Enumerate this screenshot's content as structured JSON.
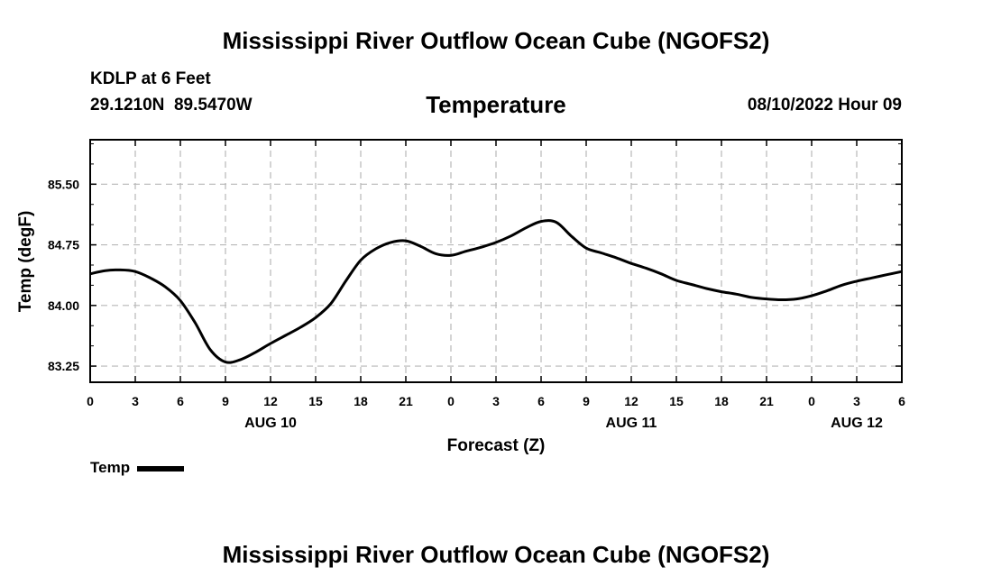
{
  "header": {
    "title": "Mississippi River Outflow Ocean Cube (NGOFS2)",
    "station": "KDLP at 6 Feet",
    "coords": "29.1210N  89.5470W",
    "variable": "Temperature",
    "datetime": "08/10/2022 Hour 09"
  },
  "footer": {
    "title": "Mississippi River Outflow Ocean Cube (NGOFS2)"
  },
  "legend": {
    "label": "Temp"
  },
  "chart_data": {
    "type": "line",
    "title": "Temperature",
    "xlabel": "Forecast (Z)",
    "ylabel": "Temp (degF)",
    "xlim": [
      0,
      54
    ],
    "ylim": [
      83.05,
      86.05
    ],
    "grid": true,
    "legend_position": "bottom-left",
    "x_ticks": [
      0,
      3,
      6,
      9,
      12,
      15,
      18,
      21,
      24,
      27,
      30,
      33,
      36,
      39,
      42,
      45,
      48,
      51,
      54
    ],
    "x_tick_labels": [
      "0",
      "3",
      "6",
      "9",
      "12",
      "15",
      "18",
      "21",
      "0",
      "3",
      "6",
      "9",
      "12",
      "15",
      "18",
      "21",
      "0",
      "3",
      "6"
    ],
    "date_labels": [
      {
        "x": 12,
        "label": "AUG 10"
      },
      {
        "x": 36,
        "label": "AUG 11"
      },
      {
        "x": 51,
        "label": "AUG 12"
      }
    ],
    "y_ticks": [
      83.25,
      84.0,
      84.75,
      85.5
    ],
    "y_tick_labels": [
      "83.25",
      "84.00",
      "84.75",
      "85.50"
    ],
    "series": [
      {
        "name": "Temp",
        "color": "#000000",
        "x": [
          0,
          1,
          2,
          3,
          4,
          5,
          6,
          7,
          8,
          9,
          10,
          11,
          12,
          13,
          14,
          15,
          16,
          17,
          18,
          19,
          20,
          21,
          22,
          23,
          24,
          25,
          26,
          27,
          28,
          29,
          30,
          31,
          32,
          33,
          34,
          35,
          36,
          37,
          38,
          39,
          40,
          41,
          42,
          43,
          44,
          45,
          46,
          47,
          48,
          49,
          50,
          51,
          52,
          53,
          54
        ],
        "values": [
          84.39,
          84.43,
          84.44,
          84.42,
          84.34,
          84.23,
          84.06,
          83.78,
          83.45,
          83.3,
          83.33,
          83.42,
          83.53,
          83.63,
          83.73,
          83.85,
          84.02,
          84.3,
          84.56,
          84.7,
          84.78,
          84.8,
          84.73,
          84.64,
          84.62,
          84.67,
          84.72,
          84.78,
          84.86,
          84.96,
          85.04,
          85.03,
          84.86,
          84.71,
          84.65,
          84.59,
          84.52,
          84.46,
          84.39,
          84.31,
          84.26,
          84.21,
          84.17,
          84.14,
          84.1,
          84.08,
          84.07,
          84.08,
          84.12,
          84.18,
          84.25,
          84.3,
          84.34,
          84.38,
          84.42
        ]
      }
    ]
  }
}
